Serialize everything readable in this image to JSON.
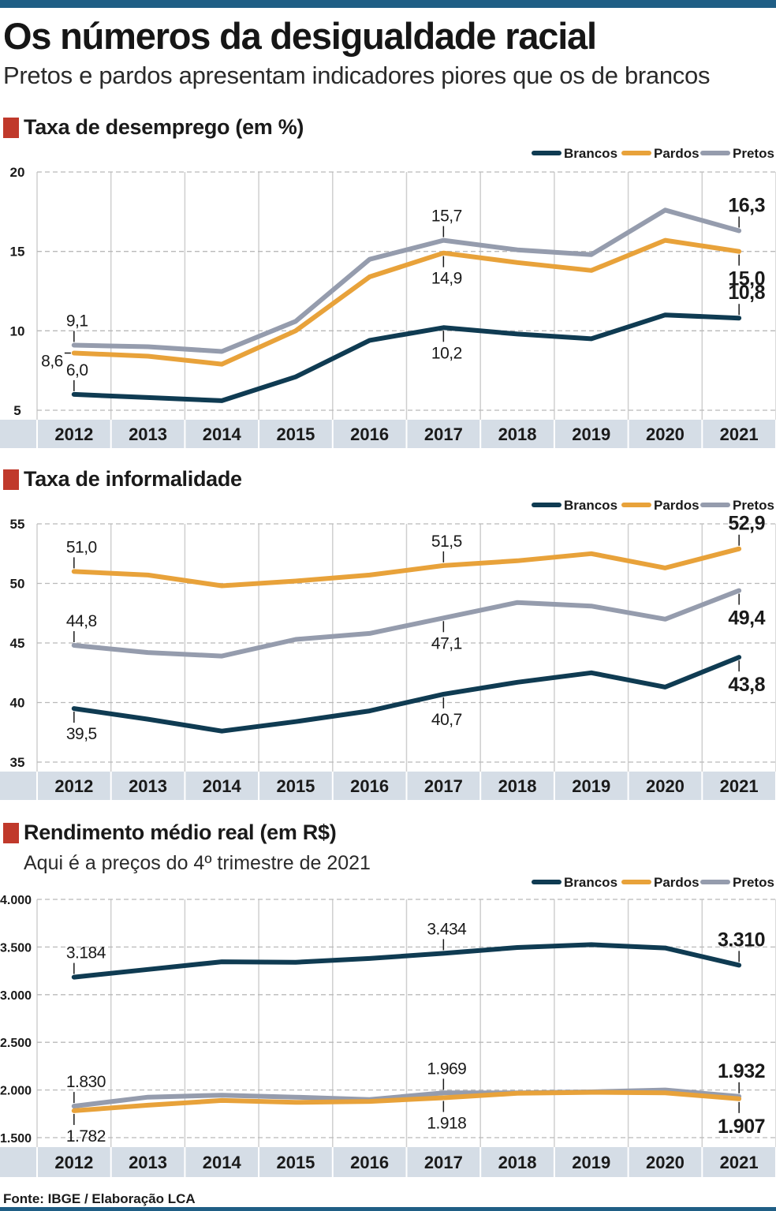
{
  "header": {
    "title": "Os números da desigualdade racial",
    "subtitle": "Pretos e pardos apresentam indicadores piores que os de brancos"
  },
  "colors": {
    "Brancos": "#0f3b52",
    "Pardos": "#e8a23a",
    "Pretos": "#959cad",
    "accent": "#c0392b",
    "axis_band": "#d5dde6"
  },
  "source": "Fonte: IBGE / Elaboração LCA",
  "chart_data": [
    {
      "type": "line",
      "title": "Taxa de desemprego (em %)",
      "subtitle": "",
      "legend_position": "top-right",
      "categories": [
        "2012",
        "2013",
        "2014",
        "2015",
        "2016",
        "2017",
        "2018",
        "2019",
        "2020",
        "2021"
      ],
      "ylim": [
        5,
        20
      ],
      "yticks": [
        5,
        10,
        15,
        20
      ],
      "ytick_labels": [
        "5",
        "10",
        "15",
        "20"
      ],
      "series": [
        {
          "name": "Brancos",
          "values": [
            6.0,
            5.8,
            5.6,
            7.1,
            9.4,
            10.2,
            9.8,
            9.5,
            11.0,
            10.8
          ]
        },
        {
          "name": "Pardos",
          "values": [
            8.6,
            8.4,
            7.9,
            10.0,
            13.4,
            14.9,
            14.3,
            13.8,
            15.7,
            15.0
          ]
        },
        {
          "name": "Pretos",
          "values": [
            9.1,
            9.0,
            8.7,
            10.6,
            14.5,
            15.7,
            15.1,
            14.8,
            17.6,
            16.3
          ]
        }
      ],
      "annotations": [
        {
          "series": "Pretos",
          "index": 0,
          "text": "9,1",
          "pos": "above"
        },
        {
          "series": "Pardos",
          "index": 0,
          "text": "8,6",
          "pos": "left"
        },
        {
          "series": "Brancos",
          "index": 0,
          "text": "6,0",
          "pos": "above"
        },
        {
          "series": "Pretos",
          "index": 5,
          "text": "15,7",
          "pos": "above"
        },
        {
          "series": "Pardos",
          "index": 5,
          "text": "14,9",
          "pos": "below"
        },
        {
          "series": "Brancos",
          "index": 5,
          "text": "10,2",
          "pos": "below"
        },
        {
          "series": "Pretos",
          "index": 9,
          "text": "16,3",
          "pos": "above",
          "bold": true
        },
        {
          "series": "Pardos",
          "index": 9,
          "text": "15,0",
          "pos": "below",
          "bold": true
        },
        {
          "series": "Brancos",
          "index": 9,
          "text": "10,8",
          "pos": "above",
          "bold": true
        }
      ]
    },
    {
      "type": "line",
      "title": "Taxa de informalidade",
      "subtitle": "",
      "legend_position": "top-right",
      "categories": [
        "2012",
        "2013",
        "2014",
        "2015",
        "2016",
        "2017",
        "2018",
        "2019",
        "2020",
        "2021"
      ],
      "ylim": [
        35,
        55
      ],
      "yticks": [
        35,
        40,
        45,
        50,
        55
      ],
      "ytick_labels": [
        "35",
        "40",
        "45",
        "50",
        "55"
      ],
      "series": [
        {
          "name": "Brancos",
          "values": [
            39.5,
            38.6,
            37.6,
            38.4,
            39.3,
            40.7,
            41.7,
            42.5,
            41.3,
            43.8
          ]
        },
        {
          "name": "Pardos",
          "values": [
            51.0,
            50.7,
            49.8,
            50.2,
            50.7,
            51.5,
            51.9,
            52.5,
            51.3,
            52.9
          ]
        },
        {
          "name": "Pretos",
          "values": [
            44.8,
            44.2,
            43.9,
            45.3,
            45.8,
            47.1,
            48.4,
            48.1,
            47.0,
            49.4
          ]
        }
      ],
      "annotations": [
        {
          "series": "Pardos",
          "index": 0,
          "text": "51,0",
          "pos": "above"
        },
        {
          "series": "Pretos",
          "index": 0,
          "text": "44,8",
          "pos": "above"
        },
        {
          "series": "Brancos",
          "index": 0,
          "text": "39,5",
          "pos": "below"
        },
        {
          "series": "Pardos",
          "index": 5,
          "text": "51,5",
          "pos": "above"
        },
        {
          "series": "Pretos",
          "index": 5,
          "text": "47,1",
          "pos": "below"
        },
        {
          "series": "Brancos",
          "index": 5,
          "text": "40,7",
          "pos": "below"
        },
        {
          "series": "Pardos",
          "index": 9,
          "text": "52,9",
          "pos": "above",
          "bold": true
        },
        {
          "series": "Pretos",
          "index": 9,
          "text": "49,4",
          "pos": "below",
          "bold": true
        },
        {
          "series": "Brancos",
          "index": 9,
          "text": "43,8",
          "pos": "below",
          "bold": true
        }
      ]
    },
    {
      "type": "line",
      "title": "Rendimento médio real (em R$)",
      "subtitle": "Aqui é a preços do 4º trimestre de 2021",
      "legend_position": "top-right",
      "categories": [
        "2012",
        "2013",
        "2014",
        "2015",
        "2016",
        "2017",
        "2018",
        "2019",
        "2020",
        "2021"
      ],
      "ylim": [
        1500,
        4000
      ],
      "yticks": [
        1500,
        2000,
        2500,
        3000,
        3500,
        4000
      ],
      "ytick_labels": [
        "1.500",
        "2.000",
        "2.500",
        "3.000",
        "3.500",
        "4.000"
      ],
      "series": [
        {
          "name": "Brancos",
          "values": [
            3184,
            3265,
            3345,
            3340,
            3380,
            3434,
            3495,
            3525,
            3490,
            3310
          ]
        },
        {
          "name": "Pardos",
          "values": [
            1782,
            1840,
            1890,
            1870,
            1880,
            1918,
            1965,
            1975,
            1970,
            1907
          ]
        },
        {
          "name": "Pretos",
          "values": [
            1830,
            1925,
            1945,
            1925,
            1900,
            1969,
            1970,
            1980,
            2000,
            1932
          ]
        }
      ],
      "annotations": [
        {
          "series": "Brancos",
          "index": 0,
          "text": "3.184",
          "pos": "above"
        },
        {
          "series": "Pretos",
          "index": 0,
          "text": "1.830",
          "pos": "above"
        },
        {
          "series": "Pardos",
          "index": 0,
          "text": "1.782",
          "pos": "below"
        },
        {
          "series": "Brancos",
          "index": 5,
          "text": "3.434",
          "pos": "above"
        },
        {
          "series": "Pretos",
          "index": 5,
          "text": "1.969",
          "pos": "above"
        },
        {
          "series": "Pardos",
          "index": 5,
          "text": "1.918",
          "pos": "below"
        },
        {
          "series": "Brancos",
          "index": 9,
          "text": "3.310",
          "pos": "above",
          "bold": true
        },
        {
          "series": "Pretos",
          "index": 9,
          "text": "1.932",
          "pos": "above",
          "bold": true
        },
        {
          "series": "Pardos",
          "index": 9,
          "text": "1.907",
          "pos": "below",
          "bold": true
        }
      ]
    }
  ]
}
